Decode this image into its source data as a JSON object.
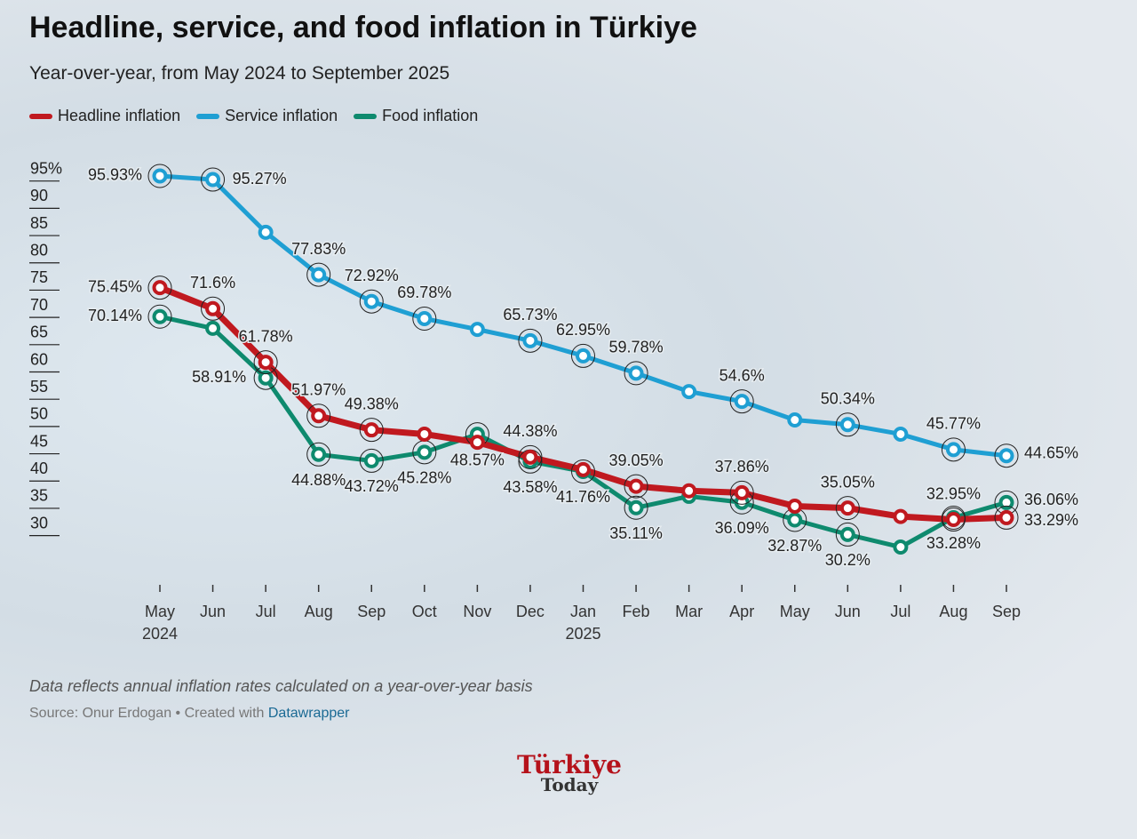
{
  "chart_data": {
    "type": "line",
    "title": "Headline, service, and food inflation in Türkiye",
    "subtitle": "Year-over-year, from May 2024 to September 2025",
    "categories": [
      "May 2024",
      "Jun",
      "Jul",
      "Aug",
      "Sep",
      "Oct",
      "Nov",
      "Dec",
      "Jan 2025",
      "Feb",
      "Mar",
      "Apr",
      "May",
      "Jun",
      "Jul",
      "Aug",
      "Sep"
    ],
    "series": [
      {
        "name": "Headline inflation",
        "color": "#c0191f",
        "values": [
          75.45,
          71.6,
          61.78,
          51.97,
          49.38,
          48.6,
          47.1,
          44.38,
          42.1,
          39.05,
          38.2,
          37.86,
          35.4,
          35.05,
          33.5,
          32.95,
          33.29
        ],
        "value_labels": [
          "75.45%",
          "71.6%",
          "61.78%",
          "51.97%",
          "49.38%",
          null,
          null,
          "44.38%",
          null,
          "39.05%",
          null,
          "37.86%",
          null,
          "35.05%",
          null,
          "32.95%",
          "33.29%"
        ]
      },
      {
        "name": "Service inflation",
        "color": "#1f9fd3",
        "values": [
          95.93,
          95.27,
          85.6,
          77.83,
          72.92,
          69.78,
          67.8,
          65.73,
          62.95,
          59.78,
          56.4,
          54.6,
          51.2,
          50.34,
          48.6,
          45.77,
          44.65
        ],
        "value_labels": [
          "95.93%",
          "95.27%",
          null,
          "77.83%",
          "72.92%",
          "69.78%",
          null,
          "65.73%",
          "62.95%",
          "59.78%",
          null,
          "54.6%",
          null,
          "50.34%",
          null,
          "45.77%",
          "44.65%"
        ]
      },
      {
        "name": "Food inflation",
        "color": "#0e8a6e",
        "values": [
          70.14,
          68.0,
          58.91,
          44.88,
          43.72,
          45.28,
          48.57,
          43.58,
          41.76,
          35.11,
          37.2,
          36.09,
          32.87,
          30.2,
          27.9,
          33.28,
          36.06
        ],
        "value_labels": [
          "70.14%",
          null,
          "58.91%",
          "44.88%",
          "43.72%",
          "45.28%",
          "48.57%",
          "43.58%",
          "41.76%",
          "35.11%",
          null,
          "36.09%",
          "32.87%",
          "30.2%",
          null,
          "33.28%",
          "36.06%"
        ]
      }
    ],
    "ylim": [
      20,
      100
    ],
    "yticks": [
      {
        "value": 95,
        "label": "95%"
      },
      90,
      85,
      80,
      75,
      70,
      65,
      60,
      55,
      50,
      45,
      40,
      35,
      30
    ],
    "note": "Data reflects annual inflation rates calculated on a year-over-year basis",
    "source": "Source: Onur Erdogan • Created with",
    "source_link": "Datawrapper"
  },
  "brand": {
    "name": "Türkiye",
    "sub": "Today"
  }
}
